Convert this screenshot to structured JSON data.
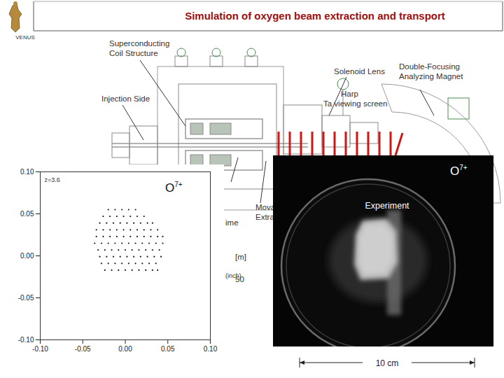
{
  "slide": {
    "title": "Simulation of oxygen beam extraction and transport",
    "logo": "VENUS",
    "diagram_labels": {
      "coil": "Superconducting Coil Structure",
      "injection": "Injection Side",
      "solenoid": "Solenoid Lens",
      "harp": "Harp",
      "screen": "Ta viewing screen",
      "magnet": "Double-Focusing Analyzing Magnet",
      "fragment_time": "ime",
      "fragment_movable": "Mova",
      "fragment_extraction": "Extra",
      "fragment_unit": "[m]",
      "fragment_scale": "50",
      "fragment_inch": "(inch)"
    },
    "experiment": {
      "label": "Experiment",
      "ion": {
        "base": "O",
        "sup": "7+"
      },
      "scale_bar": "10 cm"
    }
  },
  "chart_data": {
    "type": "scatter",
    "ion": {
      "base": "O",
      "sup": "7+"
    },
    "annotation": "z=3.6",
    "color": "#1a1a1a",
    "marker": "dot",
    "xlim": [
      -0.1,
      0.1
    ],
    "ylim": [
      -0.1,
      0.1
    ],
    "xticks": [
      {
        "value": -0.1,
        "label": "-0.10"
      },
      {
        "value": -0.05,
        "label": "-0.05"
      },
      {
        "value": 0.0,
        "label": "0.00"
      },
      {
        "value": 0.05,
        "label": "0.05"
      },
      {
        "value": 0.1,
        "label": "0.10"
      }
    ],
    "yticks": [
      {
        "value": -0.1,
        "label": "-0.10"
      },
      {
        "value": -0.05,
        "label": "-0.05"
      },
      {
        "value": 0.0,
        "label": "0.00"
      },
      {
        "value": 0.05,
        "label": "0.05"
      },
      {
        "value": 0.1,
        "label": "0.10"
      }
    ],
    "grid": false,
    "points": [
      [
        -0.02,
        0.055
      ],
      [
        -0.012,
        0.055
      ],
      [
        -0.004,
        0.055
      ],
      [
        0.004,
        0.055
      ],
      [
        0.012,
        0.055
      ],
      [
        -0.026,
        0.047
      ],
      [
        -0.018,
        0.047
      ],
      [
        -0.01,
        0.047
      ],
      [
        -0.002,
        0.047
      ],
      [
        0.006,
        0.047
      ],
      [
        0.014,
        0.047
      ],
      [
        0.022,
        0.047
      ],
      [
        -0.03,
        0.039
      ],
      [
        -0.022,
        0.039
      ],
      [
        -0.014,
        0.039
      ],
      [
        -0.006,
        0.039
      ],
      [
        0.002,
        0.039
      ],
      [
        0.01,
        0.039
      ],
      [
        0.018,
        0.039
      ],
      [
        0.026,
        0.039
      ],
      [
        0.032,
        0.039
      ],
      [
        -0.034,
        0.031
      ],
      [
        -0.026,
        0.031
      ],
      [
        -0.018,
        0.031
      ],
      [
        -0.01,
        0.031
      ],
      [
        -0.002,
        0.031
      ],
      [
        0.006,
        0.031
      ],
      [
        0.014,
        0.031
      ],
      [
        0.022,
        0.031
      ],
      [
        0.03,
        0.031
      ],
      [
        0.038,
        0.031
      ],
      [
        -0.034,
        0.023
      ],
      [
        -0.026,
        0.023
      ],
      [
        -0.018,
        0.023
      ],
      [
        -0.01,
        0.023
      ],
      [
        -0.002,
        0.023
      ],
      [
        0.006,
        0.023
      ],
      [
        0.014,
        0.023
      ],
      [
        0.022,
        0.023
      ],
      [
        0.03,
        0.023
      ],
      [
        0.038,
        0.023
      ],
      [
        0.044,
        0.023
      ],
      [
        -0.036,
        0.015
      ],
      [
        -0.028,
        0.015
      ],
      [
        -0.02,
        0.015
      ],
      [
        -0.012,
        0.015
      ],
      [
        -0.004,
        0.015
      ],
      [
        0.004,
        0.015
      ],
      [
        0.012,
        0.015
      ],
      [
        0.02,
        0.015
      ],
      [
        0.028,
        0.015
      ],
      [
        0.036,
        0.015
      ],
      [
        0.044,
        0.015
      ],
      [
        -0.032,
        0.007
      ],
      [
        -0.024,
        0.007
      ],
      [
        -0.016,
        0.007
      ],
      [
        -0.008,
        0.007
      ],
      [
        0.0,
        0.007
      ],
      [
        0.008,
        0.007
      ],
      [
        0.016,
        0.007
      ],
      [
        0.024,
        0.007
      ],
      [
        0.032,
        0.007
      ],
      [
        0.04,
        0.007
      ],
      [
        -0.03,
        -0.001
      ],
      [
        -0.022,
        -0.001
      ],
      [
        -0.014,
        -0.001
      ],
      [
        -0.006,
        -0.001
      ],
      [
        0.002,
        -0.001
      ],
      [
        0.01,
        -0.001
      ],
      [
        0.018,
        -0.001
      ],
      [
        0.026,
        -0.001
      ],
      [
        0.034,
        -0.001
      ],
      [
        0.042,
        -0.001
      ],
      [
        -0.028,
        -0.009
      ],
      [
        -0.02,
        -0.009
      ],
      [
        -0.012,
        -0.009
      ],
      [
        -0.004,
        -0.009
      ],
      [
        0.004,
        -0.009
      ],
      [
        0.012,
        -0.009
      ],
      [
        0.02,
        -0.009
      ],
      [
        0.028,
        -0.009
      ],
      [
        0.036,
        -0.009
      ],
      [
        -0.024,
        -0.017
      ],
      [
        -0.016,
        -0.017
      ],
      [
        -0.008,
        -0.017
      ],
      [
        0.0,
        -0.017
      ],
      [
        0.008,
        -0.017
      ],
      [
        0.016,
        -0.017
      ],
      [
        0.024,
        -0.017
      ],
      [
        0.032,
        -0.017
      ],
      [
        0.038,
        -0.017
      ]
    ]
  }
}
